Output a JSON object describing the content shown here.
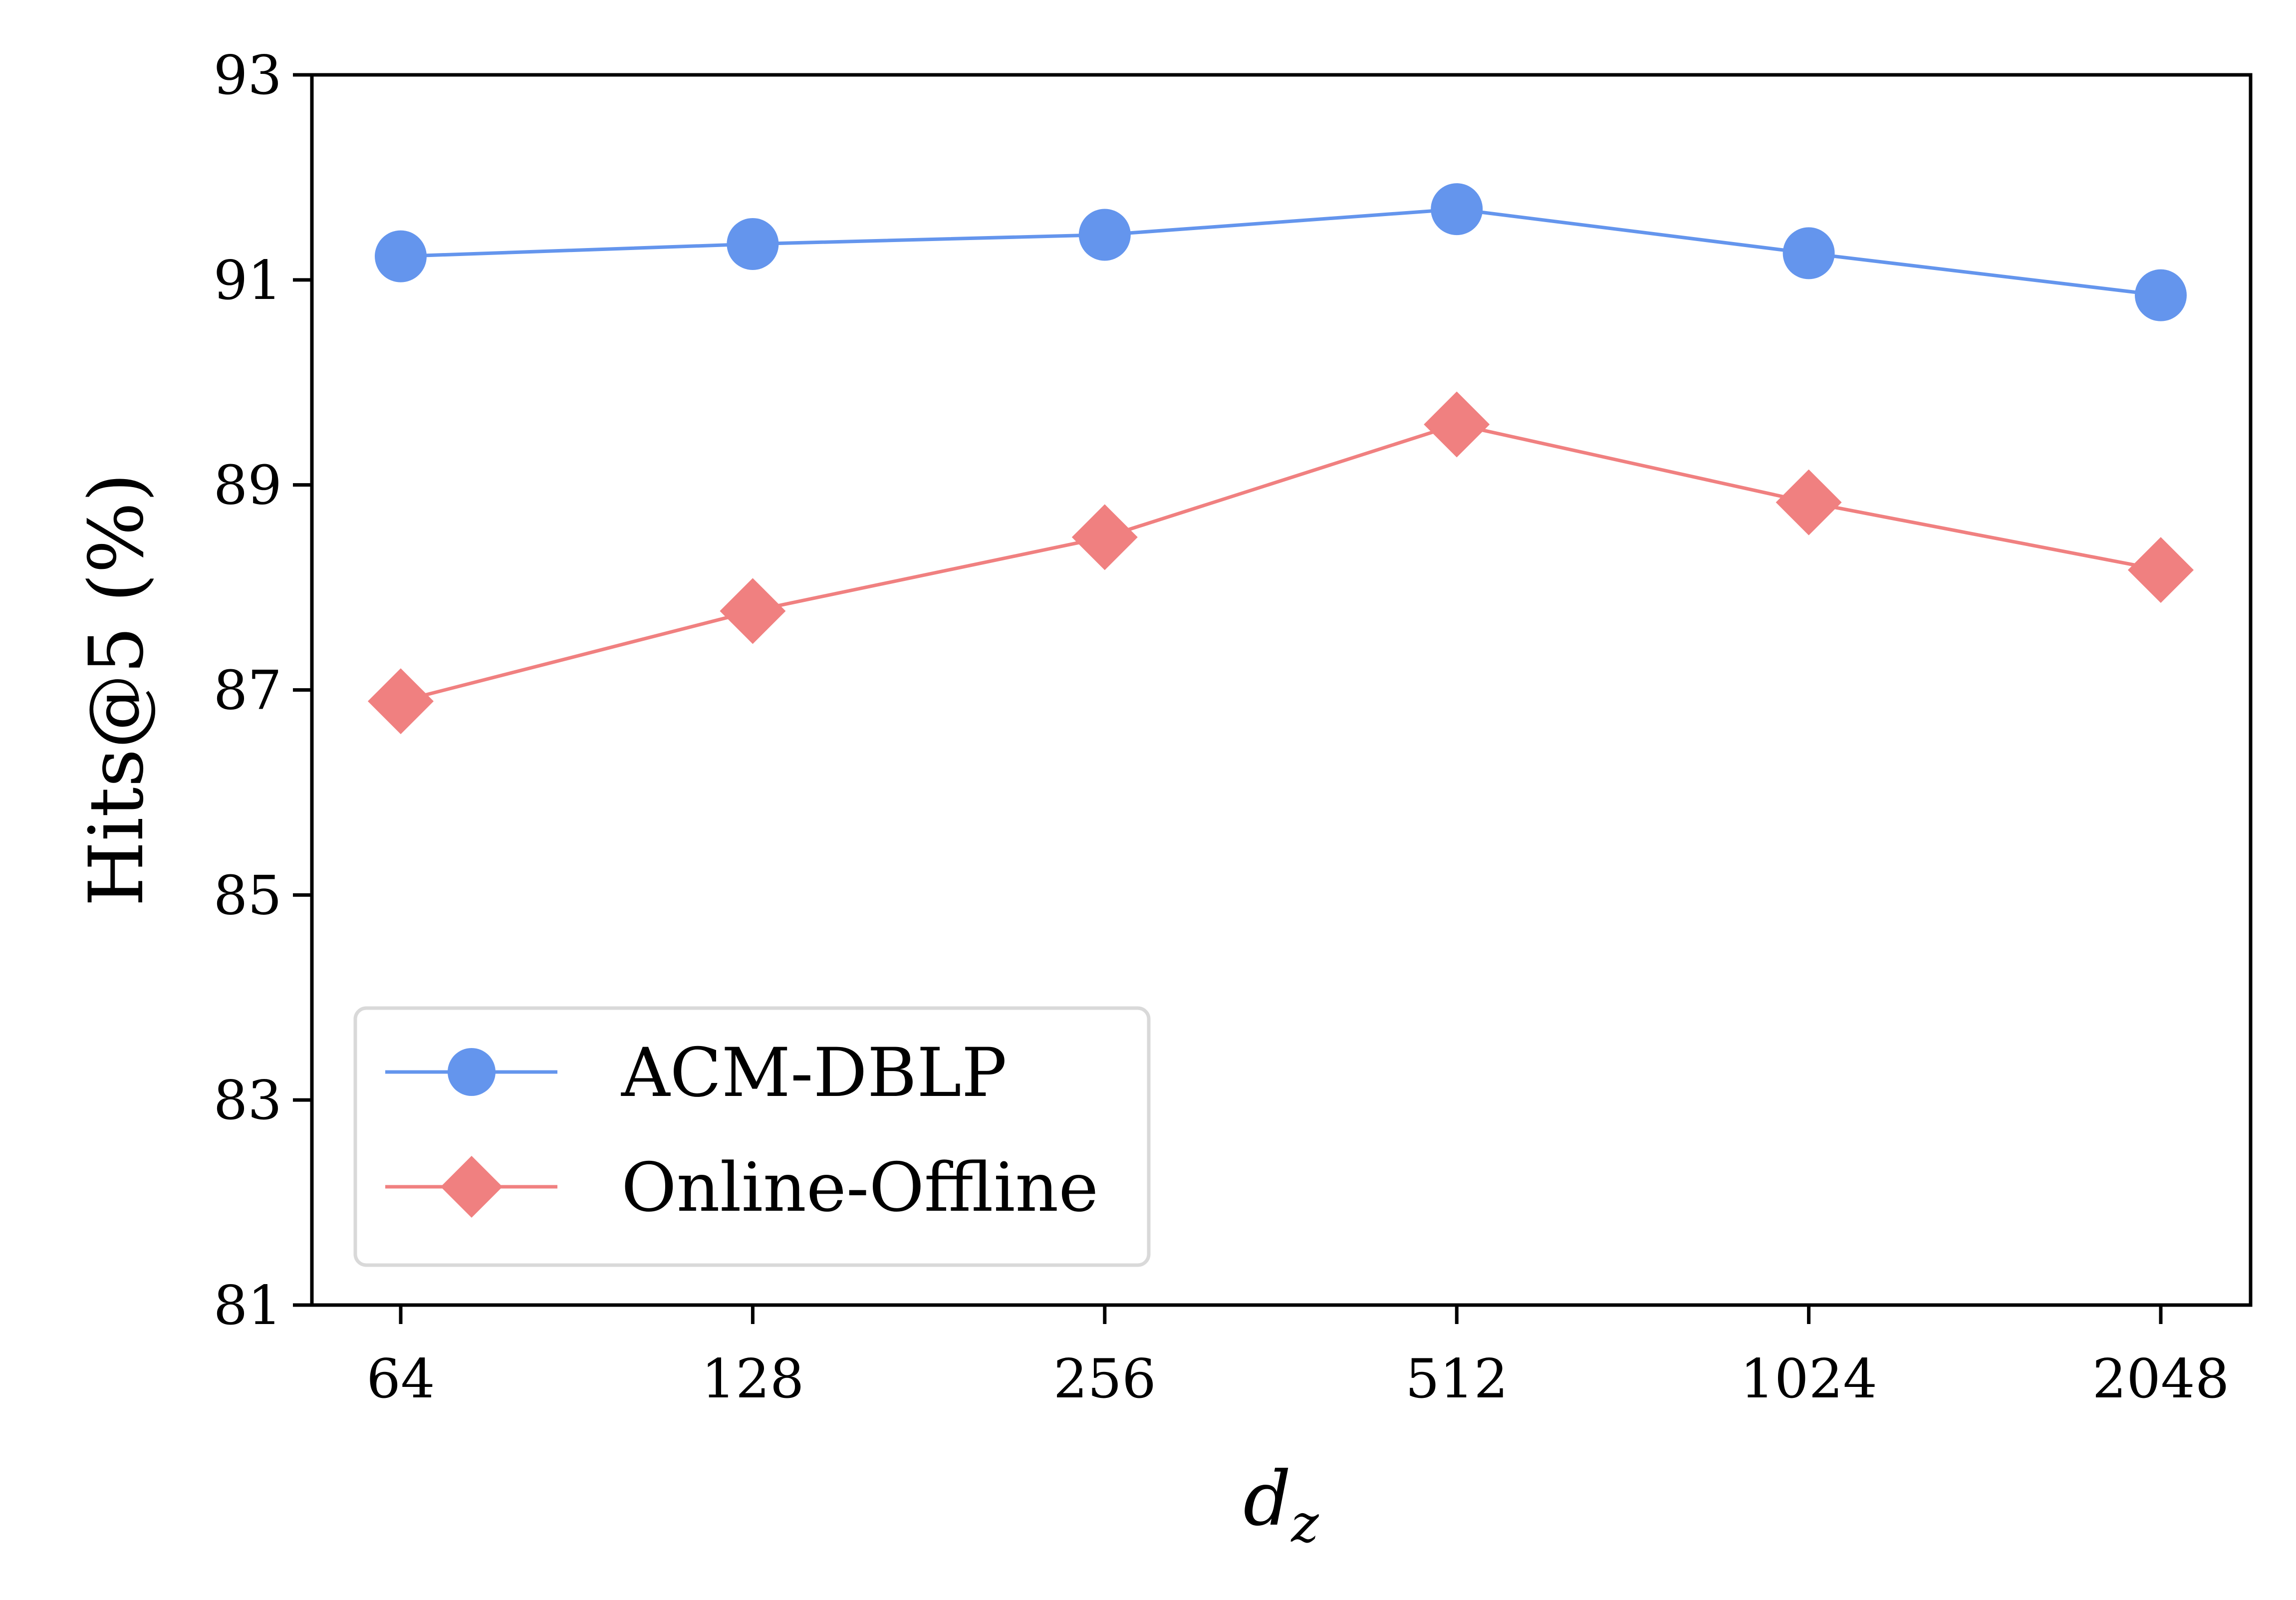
{
  "chart_data": {
    "type": "line",
    "categories": [
      "64",
      "128",
      "256",
      "512",
      "1024",
      "2048"
    ],
    "xlabel": "d_z",
    "xlabel_main": "d",
    "xlabel_sub": "z",
    "ylabel": "Hits@5 (%)",
    "ylim": [
      81,
      93
    ],
    "yticks": [
      "81",
      "83",
      "85",
      "87",
      "89",
      "91",
      "93"
    ],
    "grid": false,
    "legend_position": "lower-left",
    "series": [
      {
        "name": "ACM-DBLP",
        "marker": "circle",
        "color": "#6495ED",
        "values": [
          91.23,
          91.35,
          91.44,
          91.69,
          91.26,
          90.85
        ]
      },
      {
        "name": "Online-Offline",
        "marker": "diamond",
        "color": "#F08080",
        "values": [
          86.89,
          87.77,
          88.49,
          89.59,
          88.83,
          88.17
        ]
      }
    ]
  }
}
